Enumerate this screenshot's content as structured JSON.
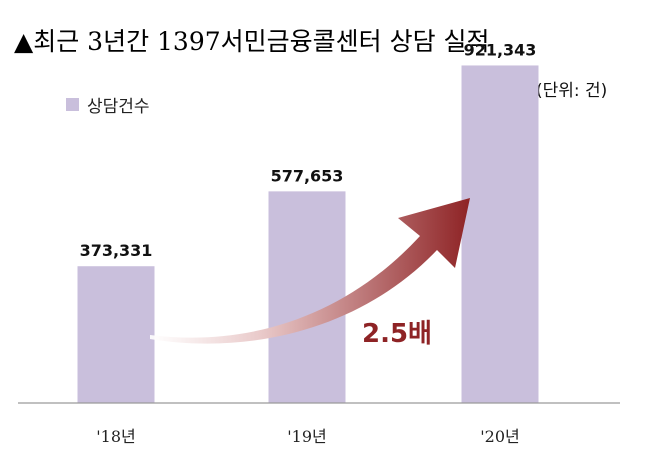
{
  "title": "▲최근 3년간 1397서민금융콜센터 상담 실적",
  "unit_label": "(단위: 건)",
  "colors": {
    "bar": "#c9bfdc",
    "arrow_dark": "#8e2325",
    "arrow_light": "#f4e3e3"
  },
  "chart_data": {
    "type": "bar",
    "categories": [
      "'18년",
      "'19년",
      "'20년"
    ],
    "series": [
      {
        "name": "상담건수",
        "values": [
          373331,
          577653,
          921343
        ]
      }
    ],
    "value_labels": [
      "373,331",
      "577,653",
      "921,343"
    ],
    "ylim": [
      0,
      1100000
    ],
    "annotation": "2.5배",
    "legend_position": "top-left"
  }
}
